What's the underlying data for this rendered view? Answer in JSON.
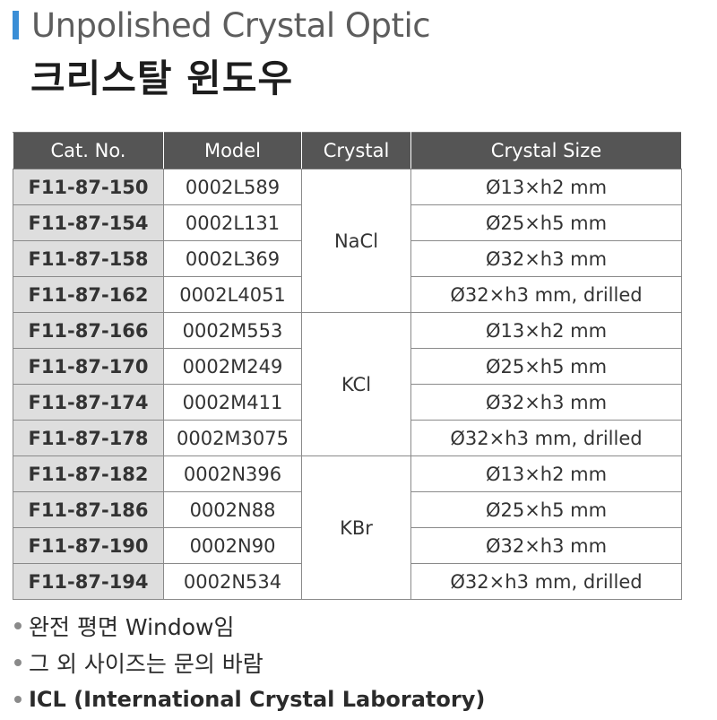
{
  "header": {
    "title_en": "Unpolished Crystal Optic",
    "title_ko": "크리스탈 윈도우"
  },
  "table": {
    "columns": [
      "Cat. No.",
      "Model",
      "Crystal",
      "Crystal Size"
    ],
    "rows": [
      {
        "cat": "F11-87-150",
        "model": "0002L589",
        "size": "Ø13×h2 mm"
      },
      {
        "cat": "F11-87-154",
        "model": "0002L131",
        "size": "Ø25×h5 mm"
      },
      {
        "cat": "F11-87-158",
        "model": "0002L369",
        "size": "Ø32×h3 mm"
      },
      {
        "cat": "F11-87-162",
        "model": "0002L4051",
        "size": "Ø32×h3 mm, drilled"
      },
      {
        "cat": "F11-87-166",
        "model": "0002M553",
        "size": "Ø13×h2 mm"
      },
      {
        "cat": "F11-87-170",
        "model": "0002M249",
        "size": "Ø25×h5 mm"
      },
      {
        "cat": "F11-87-174",
        "model": "0002M411",
        "size": "Ø32×h3 mm"
      },
      {
        "cat": "F11-87-178",
        "model": "0002M3075",
        "size": "Ø32×h3 mm, drilled"
      },
      {
        "cat": "F11-87-182",
        "model": "0002N396",
        "size": "Ø13×h2 mm"
      },
      {
        "cat": "F11-87-186",
        "model": "0002N88",
        "size": "Ø25×h5 mm"
      },
      {
        "cat": "F11-87-190",
        "model": "0002N90",
        "size": "Ø32×h3 mm"
      },
      {
        "cat": "F11-87-194",
        "model": "0002N534",
        "size": "Ø32×h3 mm, drilled"
      }
    ],
    "crystals": [
      "NaCl",
      "KCl",
      "KBr"
    ]
  },
  "notes": [
    "완전 평면 Window임",
    "그 외 사이즈는 문의 바람",
    "ICL (International Crystal Laboratory)"
  ],
  "colors": {
    "accent": "#3a8ed6",
    "header_bg": "#555555",
    "cat_bg": "#dedede"
  }
}
